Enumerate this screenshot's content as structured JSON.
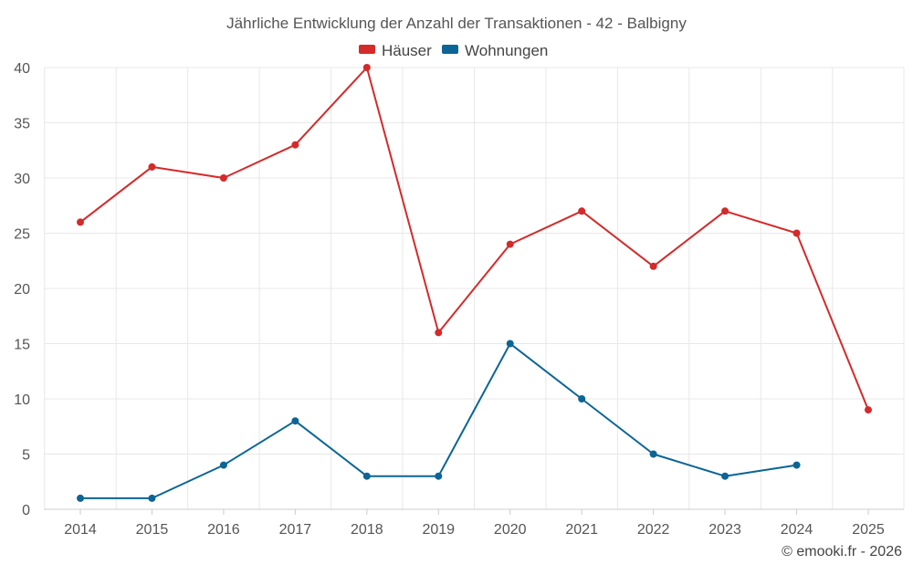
{
  "chart_data": {
    "type": "line",
    "title": "Jährliche Entwicklung der Anzahl der Transaktionen - 42 - Balbigny",
    "xlabel": "",
    "ylabel": "",
    "categories": [
      "2014",
      "2015",
      "2016",
      "2017",
      "2018",
      "2019",
      "2020",
      "2021",
      "2022",
      "2023",
      "2024",
      "2025"
    ],
    "ylim": [
      0,
      40
    ],
    "yticks": [
      0,
      5,
      10,
      15,
      20,
      25,
      30,
      35,
      40
    ],
    "grid": true,
    "legend_position": "top-center",
    "series": [
      {
        "name": "Häuser",
        "color": "#d42a2a",
        "values": [
          26,
          31,
          30,
          33,
          40,
          16,
          24,
          27,
          22,
          27,
          25,
          9
        ]
      },
      {
        "name": "Wohnungen",
        "color": "#0b6596",
        "values": [
          1,
          1,
          4,
          8,
          3,
          3,
          15,
          10,
          5,
          3,
          4,
          null
        ]
      }
    ]
  },
  "credit": "© emooki.fr - 2026"
}
